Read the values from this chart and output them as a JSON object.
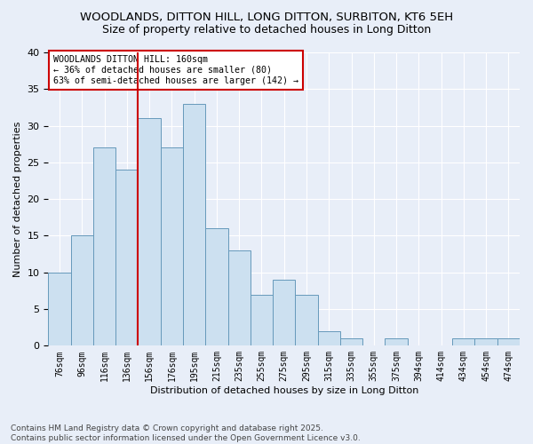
{
  "title1": "WOODLANDS, DITTON HILL, LONG DITTON, SURBITON, KT6 5EH",
  "title2": "Size of property relative to detached houses in Long Ditton",
  "xlabel": "Distribution of detached houses by size in Long Ditton",
  "ylabel": "Number of detached properties",
  "bin_labels": [
    "76sqm",
    "96sqm",
    "116sqm",
    "136sqm",
    "156sqm",
    "176sqm",
    "195sqm",
    "215sqm",
    "235sqm",
    "255sqm",
    "275sqm",
    "295sqm",
    "315sqm",
    "335sqm",
    "355sqm",
    "375sqm",
    "394sqm",
    "414sqm",
    "434sqm",
    "454sqm",
    "474sqm"
  ],
  "values": [
    10,
    15,
    27,
    24,
    31,
    27,
    33,
    16,
    13,
    7,
    9,
    7,
    2,
    1,
    0,
    1,
    0,
    0,
    1,
    1,
    1
  ],
  "bar_color": "#cce0f0",
  "bar_edge_color": "#6699bb",
  "vline_index": 4,
  "vline_color": "#cc0000",
  "annotation_text": "WOODLANDS DITTON HILL: 160sqm\n← 36% of detached houses are smaller (80)\n63% of semi-detached houses are larger (142) →",
  "annotation_box_color": "#ffffff",
  "annotation_box_edge": "#cc0000",
  "ylim": [
    0,
    40
  ],
  "yticks": [
    0,
    5,
    10,
    15,
    20,
    25,
    30,
    35,
    40
  ],
  "footer_text": "Contains HM Land Registry data © Crown copyright and database right 2025.\nContains public sector information licensed under the Open Government Licence v3.0.",
  "bg_color": "#e8eef8",
  "plot_bg_color": "#e8eef8"
}
